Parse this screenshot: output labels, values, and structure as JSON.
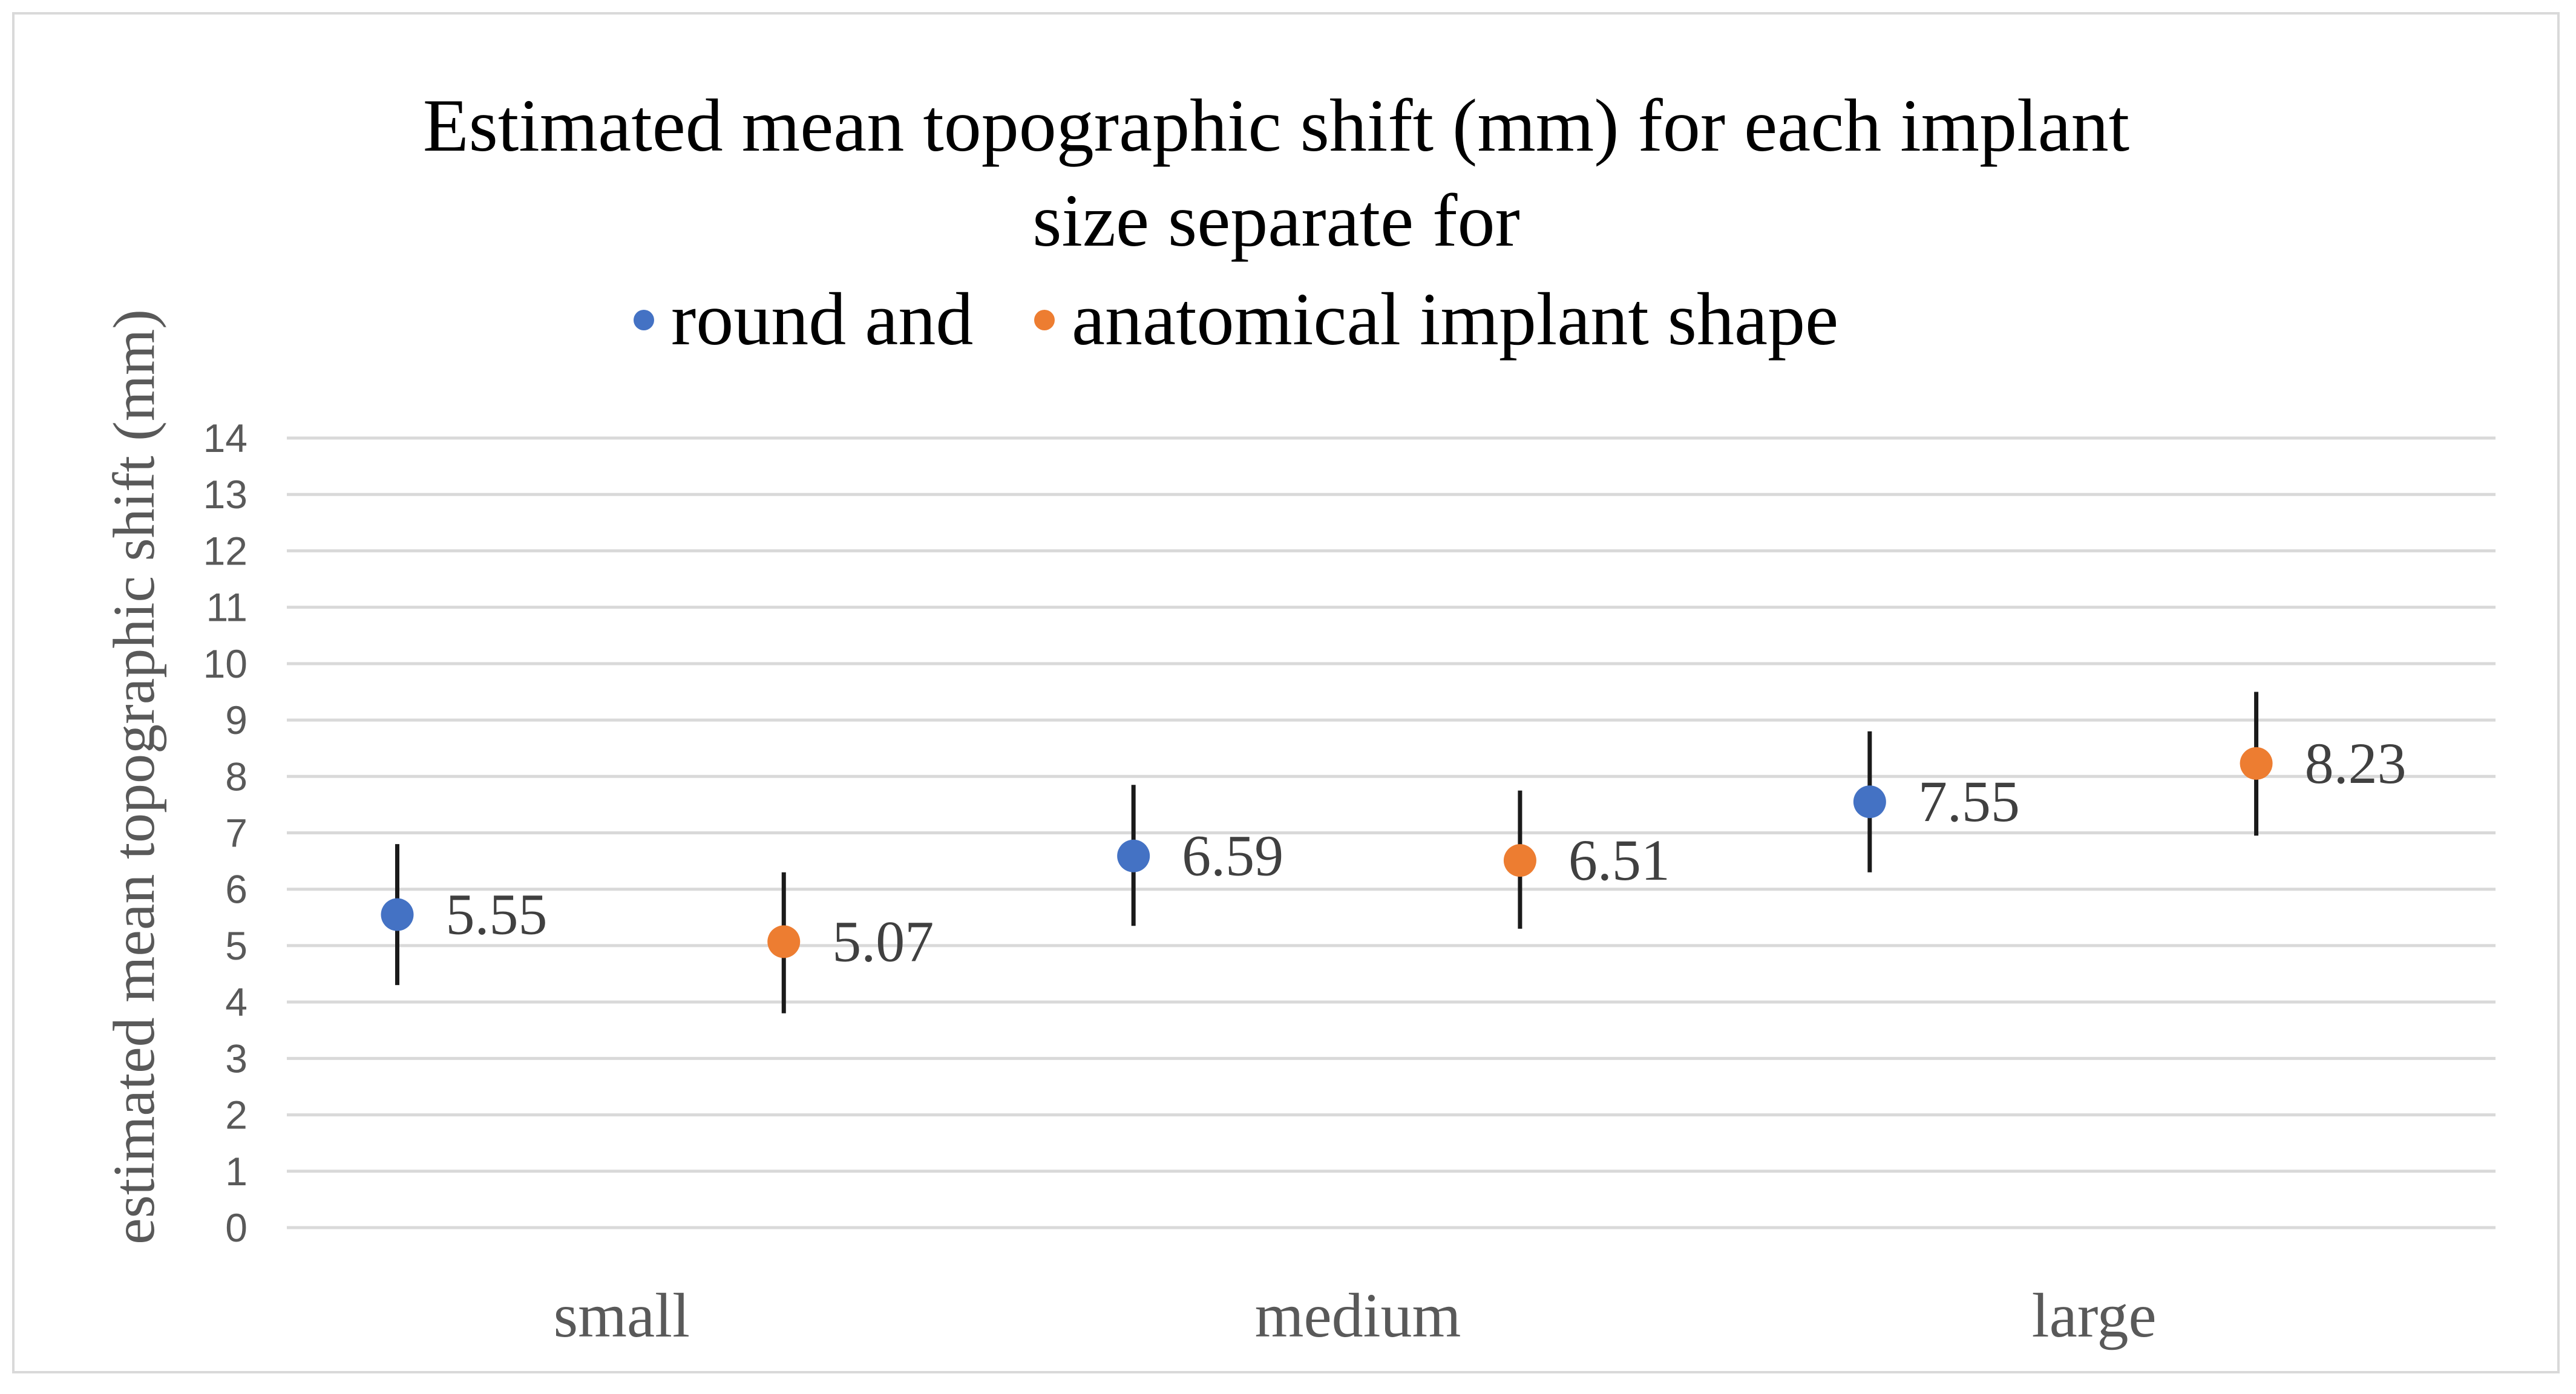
{
  "chart_data": {
    "type": "scatter",
    "title_lines": [
      "Estimated mean topographic shift (mm) for each implant",
      "size separate for"
    ],
    "legend": {
      "placement": "top",
      "items": [
        {
          "label": "round and",
          "color": "#4472c4"
        },
        {
          "label": "anatomical implant shape",
          "color": "#ed7d31"
        }
      ]
    },
    "ylabel": "estimated mean topographic shift (mm)",
    "ylim": [
      0,
      14
    ],
    "yticks": [
      "0",
      "1",
      "2",
      "3",
      "4",
      "5",
      "6",
      "7",
      "8",
      "9",
      "10",
      "11",
      "12",
      "13",
      "14"
    ],
    "categories": [
      "small",
      "medium",
      "large"
    ],
    "grid": true,
    "series": [
      {
        "name": "round",
        "color": "#4472c4",
        "values": [
          5.55,
          6.59,
          7.55
        ],
        "labels": [
          "5.55",
          "6.59",
          "7.55"
        ],
        "err_low": [
          4.3,
          5.35,
          6.3
        ],
        "err_high": [
          6.8,
          7.85,
          8.8
        ]
      },
      {
        "name": "anatomical",
        "color": "#ed7d31",
        "values": [
          5.07,
          6.51,
          8.23
        ],
        "labels": [
          "5.07",
          "6.51",
          "8.23"
        ],
        "err_low": [
          3.8,
          5.3,
          6.95
        ],
        "err_high": [
          6.3,
          7.75,
          9.5
        ]
      }
    ]
  }
}
